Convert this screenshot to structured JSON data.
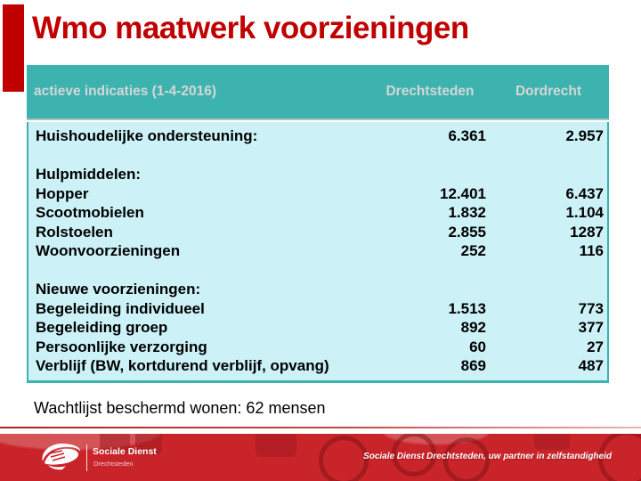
{
  "slide": {
    "title": "Wmo maatwerk voorzieningen"
  },
  "table": {
    "headers": [
      "actieve indicaties (1-4-2016)",
      "Drechtsteden",
      "Dordrecht"
    ],
    "rows": [
      {
        "label": "Huishoudelijke ondersteuning:",
        "drechtsteden": "6.361",
        "dordrecht": "2.957"
      },
      {
        "label": "",
        "drechtsteden": "",
        "dordrecht": ""
      },
      {
        "label": "Hulpmiddelen:",
        "drechtsteden": "",
        "dordrecht": ""
      },
      {
        "label": "Hopper",
        "drechtsteden": "12.401",
        "dordrecht": "6.437"
      },
      {
        "label": "Scootmobielen",
        "drechtsteden": "1.832",
        "dordrecht": "1.104"
      },
      {
        "label": "Rolstoelen",
        "drechtsteden": "2.855",
        "dordrecht": "1287"
      },
      {
        "label": "Woonvoorzieningen",
        "drechtsteden": "252",
        "dordrecht": "116"
      },
      {
        "label": "",
        "drechtsteden": "",
        "dordrecht": ""
      },
      {
        "label": "Nieuwe voorzieningen:",
        "drechtsteden": "",
        "dordrecht": ""
      },
      {
        "label": "Begeleiding individueel",
        "drechtsteden": "1.513",
        "dordrecht": "773"
      },
      {
        "label": "Begeleiding groep",
        "drechtsteden": "892",
        "dordrecht": "377"
      },
      {
        "label": "Persoonlijke verzorging",
        "drechtsteden": "60",
        "dordrecht": "27"
      },
      {
        "label": "Verblijf (BW, kortdurend verblijf, opvang)",
        "drechtsteden": "869",
        "dordrecht": "487"
      }
    ]
  },
  "note": "Wachtlijst beschermd wonen: 62 mensen",
  "footer": {
    "logo_title": "Sociale Dienst",
    "logo_subtitle": "Drechtsteden",
    "tagline": "Sociale Dienst Drechtsteden, uw partner in zelfstandigheid"
  },
  "colors": {
    "title_red": "#c00000",
    "table_header_teal": "#3cb3af",
    "table_body_cyan": "#ccf2f8",
    "header_text_gray": "#d6d6d6",
    "footer_red": "#c9242a"
  }
}
